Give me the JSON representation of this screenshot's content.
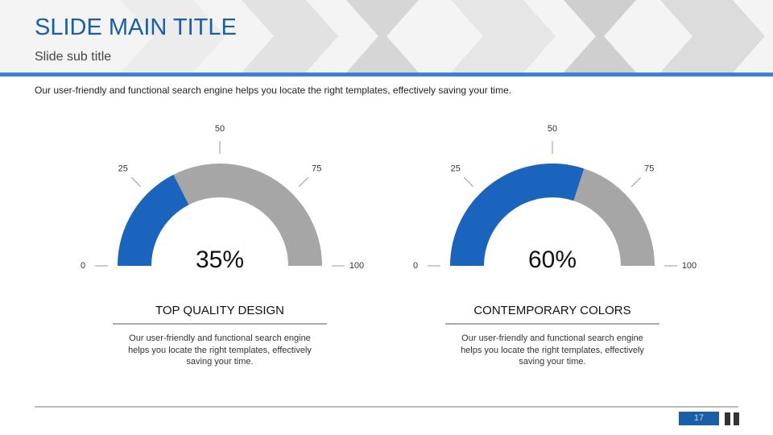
{
  "header": {
    "title": "SLIDE MAIN TITLE",
    "subtitle": "Slide sub title"
  },
  "intro": "Our user-friendly and functional search engine helps you locate the right templates, effectively saving your time.",
  "page_number": "17",
  "chart_data": [
    {
      "type": "gauge",
      "title": "TOP QUALITY DESIGN",
      "description": "Our user-friendly and functional search engine helps you locate the right templates, effectively saving your time.",
      "values": [
        35
      ],
      "value_labels": [
        "35%"
      ],
      "ylim": [
        0,
        100
      ],
      "yticks": [
        0,
        25,
        50,
        75,
        100
      ],
      "color": "#1a64bd",
      "track_color": "#a6a6a6"
    },
    {
      "type": "gauge",
      "title": "CONTEMPORARY COLORS",
      "description": "Our user-friendly and functional search engine helps you locate the right templates, effectively saving your time.",
      "values": [
        60
      ],
      "value_labels": [
        "60%"
      ],
      "ylim": [
        0,
        100
      ],
      "yticks": [
        0,
        25,
        50,
        75,
        100
      ],
      "color": "#1a64bd",
      "track_color": "#a6a6a6"
    }
  ]
}
